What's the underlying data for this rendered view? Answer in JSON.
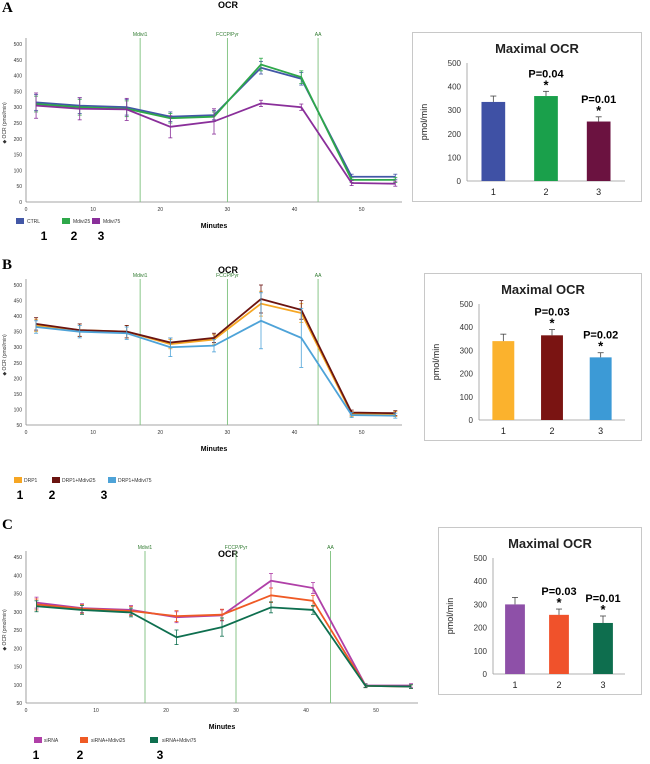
{
  "chart_data": [
    {
      "panel": "A",
      "type": "line",
      "title": "OCR",
      "xlabel": "Minutes",
      "ylabel": "OCR (pmol/min)",
      "xlim": [
        0,
        56
      ],
      "ylim": [
        0,
        500
      ],
      "xticks": [
        0,
        10,
        20,
        30,
        40,
        50
      ],
      "yticks": [
        0,
        50,
        100,
        150,
        200,
        250,
        300,
        350,
        400,
        450,
        500
      ],
      "x": [
        1.5,
        8,
        15,
        21.5,
        28,
        35,
        41,
        48.5,
        55
      ],
      "injections": [
        {
          "label": "Mdivi1",
          "x": 17
        },
        {
          "label": "FCCP/Pyr",
          "x": 30
        },
        {
          "label": "AA",
          "x": 43.5
        }
      ],
      "series": [
        {
          "name": "CTRL",
          "number": "1",
          "color": "#4257a6",
          "values": [
            315,
            305,
            300,
            270,
            275,
            425,
            390,
            80,
            80
          ],
          "err": [
            25,
            25,
            25,
            15,
            15,
            20,
            20,
            8,
            8
          ]
        },
        {
          "name": "Mdivi25",
          "number": "2",
          "color": "#2ea84a",
          "values": [
            310,
            300,
            295,
            265,
            270,
            435,
            395,
            70,
            70
          ],
          "err": [
            25,
            25,
            25,
            15,
            15,
            20,
            20,
            8,
            8
          ]
        },
        {
          "name": "Mdivi75",
          "number": "3",
          "color": "#8a2f9a",
          "values": [
            305,
            295,
            293,
            238,
            255,
            312,
            300,
            60,
            58
          ],
          "err": [
            40,
            35,
            35,
            35,
            40,
            10,
            10,
            8,
            8
          ]
        }
      ],
      "bar_chart": {
        "type": "bar",
        "title": "Maximal OCR",
        "ylabel": "pmol/min",
        "ylim": [
          0,
          500
        ],
        "yticks": [
          0,
          100,
          200,
          300,
          400,
          500
        ],
        "categories": [
          "1",
          "2",
          "3"
        ],
        "values": [
          335,
          360,
          252
        ],
        "err": [
          25,
          20,
          20
        ],
        "colors": [
          "#3f51a5",
          "#1aa04b",
          "#6b1240"
        ],
        "annotations": [
          {
            "index": 1,
            "text": "P=0.04",
            "star": "*"
          },
          {
            "index": 2,
            "text": "P=0.01",
            "star": "*"
          }
        ]
      }
    },
    {
      "panel": "B",
      "type": "line",
      "title": "OCR",
      "xlabel": "Minutes",
      "ylabel": "OCR (pmol/min)",
      "xlim": [
        0,
        56
      ],
      "ylim": [
        50,
        500
      ],
      "xticks": [
        0,
        10,
        20,
        30,
        40,
        50
      ],
      "yticks": [
        50,
        100,
        150,
        200,
        250,
        300,
        350,
        400,
        450,
        500
      ],
      "x": [
        1.5,
        8,
        15,
        21.5,
        28,
        35,
        41,
        48.5,
        55
      ],
      "injections": [
        {
          "label": "Mdivi1",
          "x": 17
        },
        {
          "label": "FCCP/Pyr",
          "x": 30
        },
        {
          "label": "AA",
          "x": 43.5
        }
      ],
      "series": [
        {
          "name": "DRP1",
          "number": "1",
          "color": "#f6a623",
          "values": [
            370,
            355,
            350,
            310,
            325,
            440,
            410,
            85,
            85
          ],
          "err": [
            20,
            20,
            20,
            15,
            15,
            40,
            30,
            8,
            8
          ]
        },
        {
          "name": "DRP1+Mdivi25",
          "number": "2",
          "color": "#6b1410",
          "values": [
            375,
            355,
            350,
            315,
            330,
            455,
            420,
            90,
            88
          ],
          "err": [
            20,
            20,
            20,
            15,
            15,
            45,
            30,
            8,
            8
          ]
        },
        {
          "name": "DRP1+Mdivi75",
          "number": "3",
          "color": "#4ea3d8",
          "values": [
            365,
            350,
            345,
            300,
            305,
            385,
            330,
            82,
            80
          ],
          "err": [
            20,
            20,
            20,
            30,
            20,
            90,
            95,
            8,
            8
          ]
        }
      ],
      "bar_chart": {
        "type": "bar",
        "title": "Maximal OCR",
        "ylabel": "pmol/min",
        "ylim": [
          0,
          500
        ],
        "yticks": [
          0,
          100,
          200,
          300,
          400,
          500
        ],
        "categories": [
          "1",
          "2",
          "3"
        ],
        "values": [
          340,
          365,
          270
        ],
        "err": [
          30,
          25,
          20
        ],
        "colors": [
          "#fbb22d",
          "#7a1412",
          "#3c9ad6"
        ],
        "annotations": [
          {
            "index": 1,
            "text": "P=0.03",
            "star": "*"
          },
          {
            "index": 2,
            "text": "P=0.02",
            "star": "*"
          }
        ]
      }
    },
    {
      "panel": "C",
      "type": "line",
      "title": "OCR",
      "xlabel": "Minutes",
      "ylabel": "OCR (pmol/min)",
      "xlim": [
        0,
        56
      ],
      "ylim": [
        50,
        450
      ],
      "xticks": [
        0,
        10,
        20,
        30,
        40,
        50
      ],
      "yticks": [
        50,
        100,
        150,
        200,
        250,
        300,
        350,
        400,
        450
      ],
      "x": [
        1.5,
        8,
        15,
        21.5,
        28,
        35,
        41,
        48.5,
        55
      ],
      "injections": [
        {
          "label": "Mdivi1",
          "x": 17
        },
        {
          "label": "FCCP/Pyr",
          "x": 30
        },
        {
          "label": "AA",
          "x": 43.5
        }
      ],
      "series": [
        {
          "name": "siRNA",
          "number": "1",
          "color": "#b040a8",
          "values": [
            325,
            310,
            305,
            285,
            290,
            385,
            365,
            98,
            98
          ],
          "err": [
            15,
            12,
            12,
            15,
            15,
            20,
            15,
            5,
            5
          ]
        },
        {
          "name": "siRNA+Mdivi25",
          "number": "2",
          "color": "#ef5a25",
          "values": [
            320,
            308,
            302,
            288,
            292,
            345,
            330,
            97,
            95
          ],
          "err": [
            15,
            12,
            12,
            15,
            15,
            20,
            15,
            5,
            5
          ]
        },
        {
          "name": "siRNA+Mdivi75",
          "number": "3",
          "color": "#0e6f4f",
          "values": [
            315,
            305,
            298,
            230,
            258,
            312,
            305,
            97,
            95
          ],
          "err": [
            15,
            12,
            12,
            20,
            25,
            15,
            12,
            5,
            5
          ]
        }
      ],
      "bar_chart": {
        "type": "bar",
        "title": "Maximal OCR",
        "ylabel": "pmol/min",
        "ylim": [
          0,
          500
        ],
        "yticks": [
          0,
          100,
          200,
          300,
          400,
          500
        ],
        "categories": [
          "1",
          "2",
          "3"
        ],
        "values": [
          300,
          255,
          220
        ],
        "err": [
          30,
          25,
          30
        ],
        "colors": [
          "#8e50a8",
          "#f0522b",
          "#0e6e4e"
        ],
        "annotations": [
          {
            "index": 1,
            "text": "P=0.03",
            "star": "*"
          },
          {
            "index": 2,
            "text": "P=0.01",
            "star": "*"
          }
        ]
      }
    }
  ]
}
